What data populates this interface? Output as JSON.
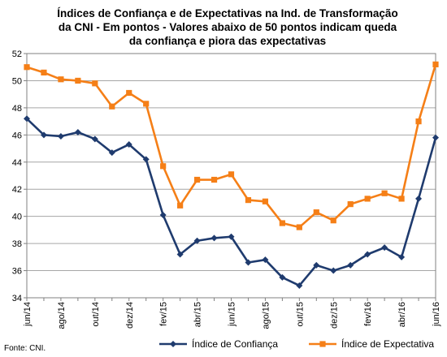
{
  "chart_data": {
    "type": "line",
    "title_lines": [
      "Índices de Confiança e de Expectativas na Ind. de Transformação",
      "da CNI - Em pontos - Valores abaixo de 50 pontos indicam queda",
      "da confiança e piora das expectativas"
    ],
    "x": [
      "jun/14",
      "jul/14",
      "ago/14",
      "set/14",
      "out/14",
      "nov/14",
      "dez/14",
      "jan/15",
      "fev/15",
      "mar/15",
      "abr/15",
      "mai/15",
      "jun/15",
      "jul/15",
      "ago/15",
      "set/15",
      "out/15",
      "nov/15",
      "dez/15",
      "jan/16",
      "fev/16",
      "mar/16",
      "abr/16",
      "mai/16",
      "jun/16"
    ],
    "x_tick_labels": [
      "jun/14",
      "",
      "ago/14",
      "",
      "out/14",
      "",
      "dez/14",
      "",
      "fev/15",
      "",
      "abr/15",
      "",
      "jun/15",
      "",
      "ago/15",
      "",
      "out/15",
      "",
      "dez/15",
      "",
      "fev/16",
      "",
      "abr/16",
      "",
      "jun/16"
    ],
    "ylim": [
      34,
      52
    ],
    "yticks": [
      34,
      36,
      38,
      40,
      42,
      44,
      46,
      48,
      50,
      52
    ],
    "grid": true,
    "legend_position": "bottom",
    "series": [
      {
        "name": "Índice de Confiança",
        "color": "#1f3b6e",
        "marker": "diamond",
        "values": [
          47.2,
          46.0,
          45.9,
          46.2,
          45.7,
          44.7,
          45.3,
          44.2,
          40.1,
          37.2,
          38.2,
          38.4,
          38.5,
          36.6,
          36.8,
          35.5,
          34.9,
          36.4,
          36.0,
          36.4,
          37.2,
          37.7,
          37.0,
          41.3,
          45.8
        ]
      },
      {
        "name": "Índice de Expectativa",
        "color": "#f57f17",
        "marker": "square",
        "values": [
          51.0,
          50.6,
          50.1,
          50.0,
          49.8,
          48.1,
          49.1,
          48.3,
          43.7,
          40.8,
          42.7,
          42.7,
          43.1,
          41.2,
          41.1,
          39.5,
          39.2,
          40.3,
          39.7,
          40.9,
          41.3,
          41.7,
          41.3,
          47.0,
          51.2
        ]
      }
    ]
  },
  "source": "Fonte: CNI."
}
